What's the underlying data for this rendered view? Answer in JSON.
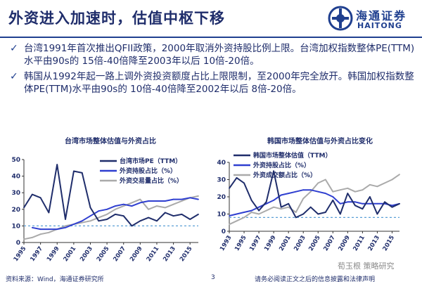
{
  "header": {
    "title": "外资进入加速时，估值中枢下移",
    "logo_cn": "海通证券",
    "logo_en": "HAITONG"
  },
  "bullets": [
    {
      "text": "台湾1991年首次推出QFII政策，2000年取消外资持股比例上限。台湾加权指数整体PE(TTM)水平由90s的 15倍-40倍降至2003年以后 10倍-20倍。"
    },
    {
      "text": "韩国从1992年起一路上调外资投资额度占比上限限制，至2000年完全放开。韩国加权指数整体PE(TTM)水平由90s的 10倍-40倍降至2002年以后 8倍-20倍。"
    }
  ],
  "footer": {
    "source": "资料来源：Wind，海通证券研究所",
    "page": "3",
    "disclaimer": "请务必阅读正文之后的信息披露和法律声明",
    "watermark": "荀玉根 策略研究"
  },
  "colors": {
    "pe": "#1f2d6b",
    "holding": "#2f3fd0",
    "trading": "#aaaaaa",
    "ref": "#5a9fd6"
  },
  "chart_data": [
    {
      "type": "line",
      "title": "台湾市场整体估值与外资占比",
      "x": [
        1995,
        1996,
        1997,
        1998,
        1999,
        2000,
        2001,
        2002,
        2003,
        2004,
        2005,
        2006,
        2007,
        2008,
        2009,
        2010,
        2011,
        2012,
        2013,
        2014,
        2015,
        2016
      ],
      "xticks": [
        1995,
        1997,
        1999,
        2001,
        2003,
        2005,
        2007,
        2009,
        2011,
        2013,
        2015
      ],
      "ylim": [
        0,
        50
      ],
      "yticks": [
        0,
        10,
        20,
        30,
        40,
        50
      ],
      "reference_line": 10,
      "series": [
        {
          "name": "台湾市场PE（TTM）",
          "values": [
            21,
            29,
            27,
            18,
            47,
            14,
            43,
            42,
            21,
            13,
            14,
            17,
            16,
            10,
            13,
            15,
            13,
            18,
            16,
            17,
            14,
            17
          ]
        },
        {
          "name": "外资持股占比（%）",
          "values": [
            null,
            9,
            8,
            8,
            8,
            9,
            11,
            13,
            16,
            19,
            20,
            22,
            23,
            22,
            24,
            25,
            25,
            25,
            26,
            26,
            27,
            26
          ]
        },
        {
          "name": "外资交易量占比（%）",
          "values": [
            2,
            3,
            5,
            6,
            8,
            10,
            11,
            12,
            13,
            15,
            17,
            20,
            22,
            24,
            26,
            20,
            22,
            21,
            23,
            25,
            27,
            28
          ]
        }
      ]
    },
    {
      "type": "line",
      "title": "韩国市场整体估值与外资占比变化",
      "x": [
        1993,
        1994,
        1995,
        1996,
        1997,
        1998,
        1999,
        2000,
        2001,
        2002,
        2003,
        2004,
        2005,
        2006,
        2007,
        2008,
        2009,
        2010,
        2011,
        2012,
        2013,
        2014,
        2015,
        2016
      ],
      "xticks": [
        1993,
        1995,
        1997,
        1999,
        2001,
        2003,
        2005,
        2007,
        2009,
        2011,
        2013,
        2015
      ],
      "ylim": [
        0,
        40
      ],
      "yticks": [
        0,
        10,
        20,
        30,
        40
      ],
      "reference_line": 8,
      "series": [
        {
          "name": "韩国市场整体估值（TTM）",
          "values": [
            25,
            31,
            28,
            18,
            12,
            17,
            35,
            14,
            16,
            8,
            10,
            14,
            10,
            11,
            18,
            10,
            22,
            15,
            13,
            20,
            10,
            17,
            14,
            16
          ]
        },
        {
          "name": "外资持股占比（%）",
          "values": [
            9,
            10,
            11,
            12,
            14,
            16,
            18,
            21,
            22,
            23,
            24,
            24,
            23,
            22,
            20,
            16,
            17,
            17,
            16,
            16,
            16,
            16,
            15,
            16
          ]
        },
        {
          "name": "外资成交额占比（%）",
          "values": [
            4,
            6,
            8,
            11,
            10,
            12,
            14,
            13,
            14,
            11,
            19,
            23,
            28,
            30,
            23,
            24,
            25,
            23,
            24,
            27,
            26,
            28,
            30,
            33
          ]
        }
      ]
    }
  ]
}
